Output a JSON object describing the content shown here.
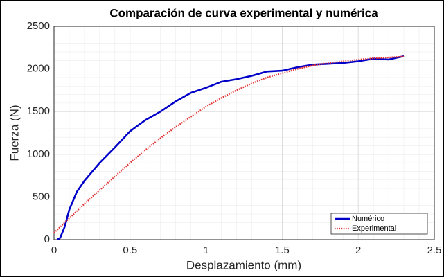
{
  "chart_data": {
    "type": "line",
    "title": "Comparación de curva experimental y numérica",
    "xlabel": "Desplazamiento (mm)",
    "ylabel": "Fuerza (N)",
    "xlim": [
      0,
      2.5
    ],
    "ylim": [
      0,
      2500
    ],
    "xticks": [
      0,
      0.5,
      1,
      1.5,
      2,
      2.5
    ],
    "yticks": [
      0,
      500,
      1000,
      1500,
      2000,
      2500
    ],
    "grid": true,
    "minor_grid": true,
    "legend": "lower right",
    "series": [
      {
        "name": "Numérico",
        "color": "#0000c8",
        "style": "solid",
        "x": [
          0.02,
          0.04,
          0.07,
          0.1,
          0.15,
          0.2,
          0.3,
          0.4,
          0.5,
          0.6,
          0.7,
          0.8,
          0.9,
          1.0,
          1.1,
          1.2,
          1.3,
          1.4,
          1.5,
          1.6,
          1.7,
          1.8,
          1.9,
          2.0,
          2.1,
          2.2,
          2.3
        ],
        "values": [
          0,
          20,
          150,
          350,
          560,
          690,
          900,
          1080,
          1270,
          1400,
          1500,
          1620,
          1720,
          1780,
          1850,
          1880,
          1920,
          1970,
          1980,
          2020,
          2050,
          2060,
          2070,
          2090,
          2120,
          2110,
          2150
        ]
      },
      {
        "name": "Experimental",
        "color": "#e03030",
        "style": "dotted",
        "x": [
          0,
          0.1,
          0.2,
          0.3,
          0.4,
          0.5,
          0.6,
          0.7,
          0.8,
          0.9,
          1.0,
          1.1,
          1.2,
          1.3,
          1.4,
          1.5,
          1.6,
          1.7,
          1.8,
          1.9,
          2.0,
          2.1,
          2.2,
          2.3
        ],
        "values": [
          80,
          250,
          420,
          580,
          740,
          900,
          1050,
          1190,
          1320,
          1440,
          1560,
          1660,
          1750,
          1830,
          1900,
          1950,
          2000,
          2040,
          2070,
          2090,
          2110,
          2125,
          2135,
          2145
        ]
      }
    ]
  }
}
